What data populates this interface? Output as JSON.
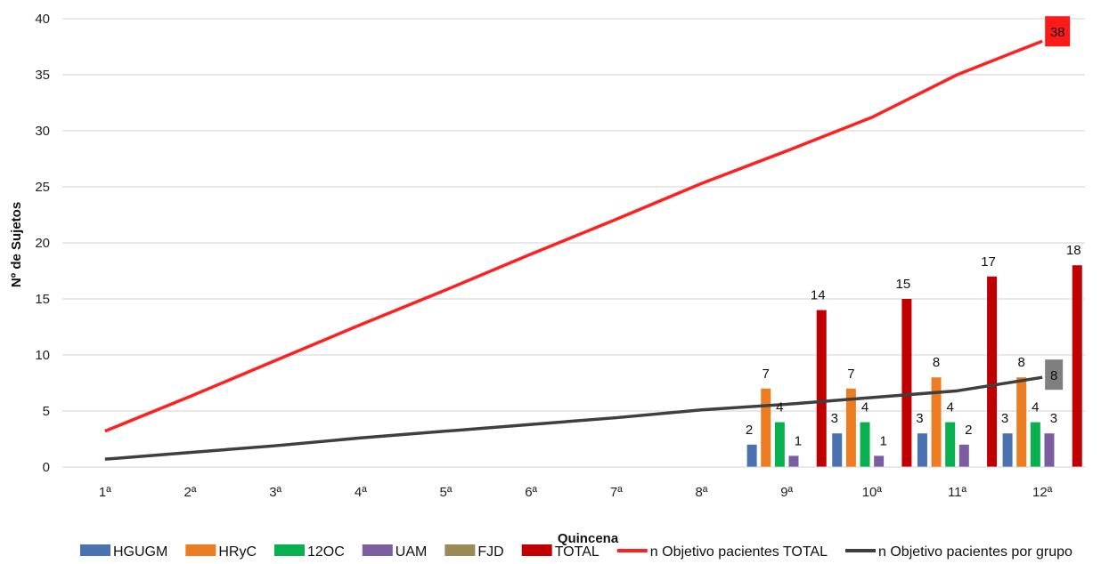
{
  "chart_data": {
    "type": "bar",
    "title": "",
    "xlabel": "Quincena",
    "ylabel": "Nº de Sujetos",
    "ylim": [
      0,
      40
    ],
    "yticks": [
      0,
      5,
      10,
      15,
      20,
      25,
      30,
      35,
      40
    ],
    "grid": true,
    "legend_position": "bottom",
    "categories": [
      "1ª",
      "2ª",
      "3ª",
      "4ª",
      "5ª",
      "6ª",
      "7ª",
      "8ª",
      "9ª",
      "10ª",
      "11ª",
      "12ª"
    ],
    "series": [
      {
        "name": "HGUGM",
        "type": "bar",
        "color": "#4a72b0",
        "values": [
          null,
          null,
          null,
          null,
          null,
          null,
          null,
          null,
          2,
          3,
          3,
          3
        ],
        "labels": [
          "",
          "",
          "",
          "",
          "",
          "",
          "",
          "",
          "2",
          "3",
          "3",
          "3"
        ]
      },
      {
        "name": "HRyC",
        "type": "bar",
        "color": "#ed7d23",
        "values": [
          null,
          null,
          null,
          null,
          null,
          null,
          null,
          null,
          7,
          7,
          8,
          8
        ],
        "labels": [
          "",
          "",
          "",
          "",
          "",
          "",
          "",
          "",
          "7",
          "7",
          "8",
          "8"
        ]
      },
      {
        "name": "12OC",
        "type": "bar",
        "color": "#08b050",
        "values": [
          null,
          null,
          null,
          null,
          null,
          null,
          null,
          null,
          4,
          4,
          4,
          4
        ],
        "labels": [
          "",
          "",
          "",
          "",
          "",
          "",
          "",
          "",
          "4",
          "4",
          "4",
          "4"
        ]
      },
      {
        "name": "UAM",
        "type": "bar",
        "color": "#7a5ea0",
        "values": [
          null,
          null,
          null,
          null,
          null,
          null,
          null,
          null,
          1,
          1,
          2,
          3
        ],
        "labels": [
          "",
          "",
          "",
          "",
          "",
          "",
          "",
          "",
          "1",
          "1",
          "2",
          "3"
        ]
      },
      {
        "name": "FJD",
        "type": "bar",
        "color": "#9a8a55",
        "values": [
          null,
          null,
          null,
          null,
          null,
          null,
          null,
          null,
          null,
          null,
          null,
          null
        ],
        "labels": [
          "",
          "",
          "",
          "",
          "",
          "",
          "",
          "",
          "",
          "",
          "",
          ""
        ]
      },
      {
        "name": "TOTAL",
        "type": "bar",
        "color": "#c00000",
        "values": [
          null,
          null,
          null,
          null,
          null,
          null,
          null,
          null,
          14,
          15,
          17,
          18
        ],
        "labels": [
          "",
          "",
          "",
          "",
          "",
          "",
          "",
          "",
          "14",
          "15",
          "17",
          "18"
        ]
      },
      {
        "name": "n Objetivo pacientes TOTAL",
        "type": "line",
        "color": "#ff2020",
        "values": [
          3.2,
          6.3,
          9.5,
          12.7,
          15.8,
          19.0,
          22.1,
          25.3,
          28.2,
          31.2,
          35.0,
          38
        ],
        "end_label": "38",
        "end_label_bg": "#ff1a1a"
      },
      {
        "name": "n Objetivo pacientes por grupo",
        "type": "line",
        "color": "#3f3f3f",
        "values": [
          0.7,
          1.3,
          1.9,
          2.6,
          3.2,
          3.8,
          4.4,
          5.1,
          5.6,
          6.2,
          6.8,
          8
        ],
        "end_label": "8",
        "end_label_bg": "#7f7f7f"
      }
    ]
  }
}
